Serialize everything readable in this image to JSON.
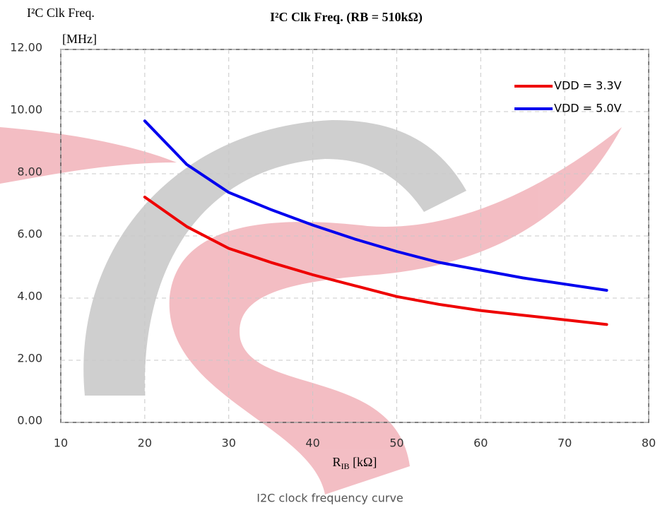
{
  "chart_data": {
    "type": "line",
    "title": "I²C Clk Freq. (RB = 510kΩ)",
    "y_label": "I²C Clk Freq.",
    "y_unit": "[MHz]",
    "x_label": [
      "R",
      "IB",
      " [kΩ]"
    ],
    "caption": "I2C clock frequency curve",
    "x": [
      20,
      25,
      30,
      35,
      40,
      45,
      50,
      55,
      60,
      65,
      70,
      75
    ],
    "series": [
      {
        "name": "VDD = 3.3V",
        "color": "#ee0000",
        "values": [
          7.25,
          6.3,
          5.6,
          5.15,
          4.75,
          4.4,
          4.05,
          3.8,
          3.6,
          3.45,
          3.3,
          3.15
        ]
      },
      {
        "name": "VDD = 5.0V",
        "color": "#0000ee",
        "values": [
          9.7,
          8.3,
          7.4,
          6.85,
          6.35,
          5.9,
          5.5,
          5.15,
          4.9,
          4.65,
          4.45,
          4.25
        ]
      }
    ],
    "xlim": [
      10,
      80
    ],
    "xticks": [
      10,
      20,
      30,
      40,
      50,
      60,
      70,
      80
    ],
    "ylim": [
      0,
      12
    ],
    "yticks": [
      {
        "value": 0,
        "label": "0.00"
      },
      {
        "value": 2,
        "label": "2.00"
      },
      {
        "value": 4,
        "label": "4.00"
      },
      {
        "value": 6,
        "label": "6.00"
      },
      {
        "value": 8,
        "label": "8.00"
      },
      {
        "value": 10,
        "label": "10.00"
      },
      {
        "value": 12,
        "label": "12.00"
      }
    ],
    "grid": true,
    "legend": "top-right"
  }
}
